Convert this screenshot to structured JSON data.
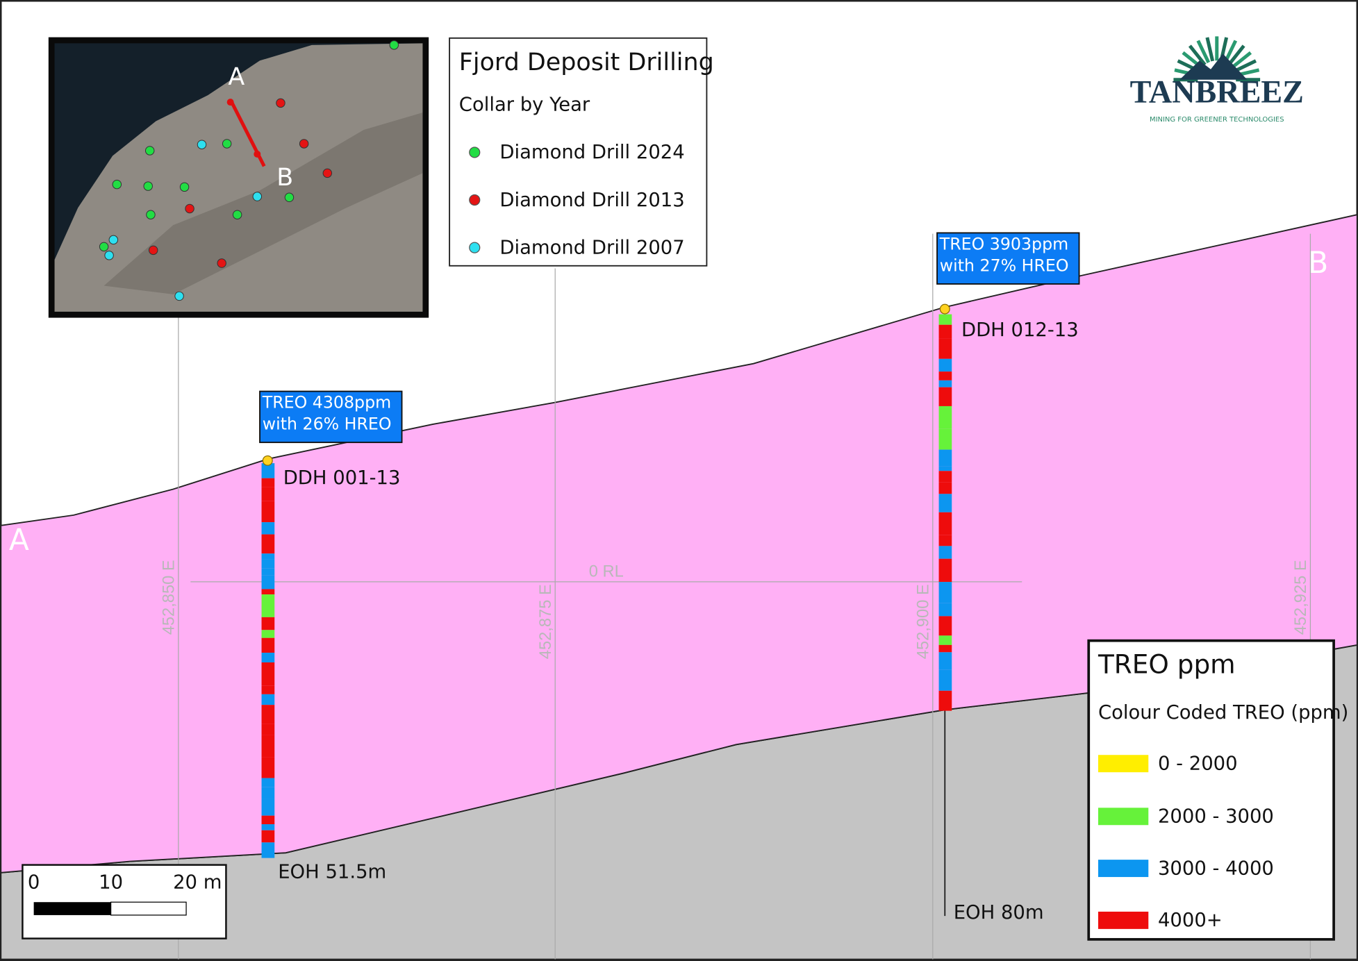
{
  "title": "Fjord Deposit Drilling",
  "collar_legend": {
    "title": "Collar by Year",
    "items": [
      "Diamond Drill 2024",
      "Diamond Drill 2013",
      "Diamond Drill 2007"
    ]
  },
  "inset_map": {
    "point_a": "A",
    "point_b": "B"
  },
  "section_ends": {
    "start": "A",
    "end": "B"
  },
  "drill_holes": [
    {
      "id": "DDH 001-13",
      "callout": [
        "TREO 4308ppm",
        "with 26% HREO"
      ],
      "end": "EOH 51.5m"
    },
    {
      "id": "DDH 012-13",
      "callout": [
        "TREO 3903ppm",
        "with 27% HREO"
      ],
      "end": "EOH 80m"
    }
  ],
  "grid": {
    "eastings": [
      "452,850 E",
      "452,875 E",
      "452,900 E",
      "452,925 E"
    ],
    "elevation": "0 RL"
  },
  "scale_bar": {
    "labels": [
      "0",
      "10",
      "20 m"
    ]
  },
  "treo_legend": {
    "title": "TREO ppm",
    "subtitle": "Colour Coded TREO (ppm)",
    "classes": [
      "0 - 2000",
      "2000 - 3000",
      "3000 - 4000",
      "4000+"
    ]
  },
  "logo": {
    "name": "TANBREEZ",
    "tagline": "MINING FOR GREENER TECHNOLOGIES"
  }
}
